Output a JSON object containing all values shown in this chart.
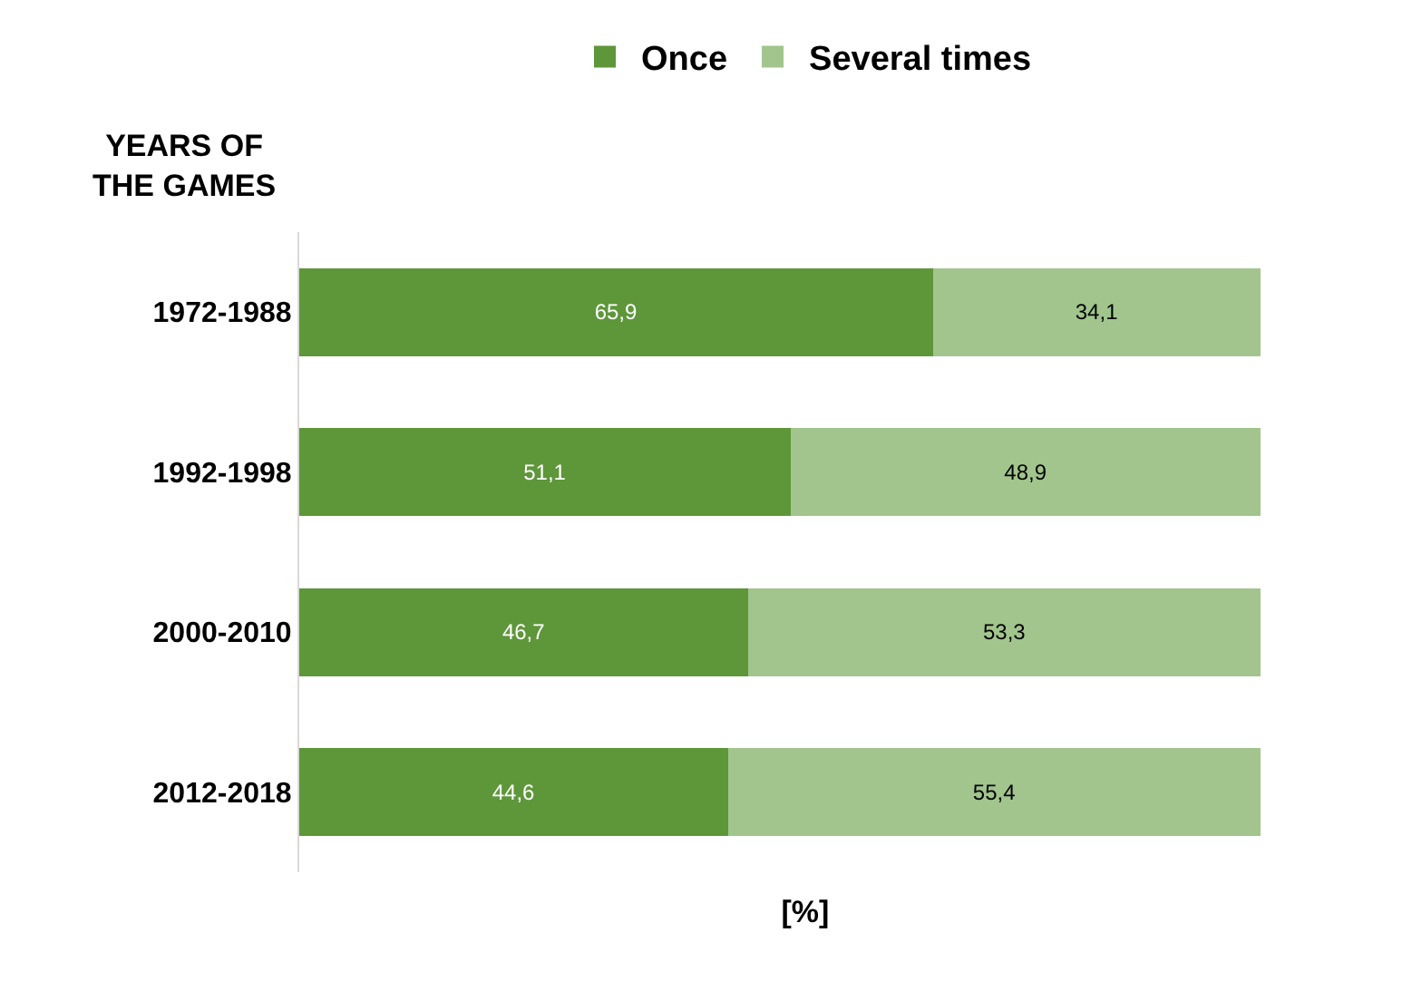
{
  "chart_data": {
    "type": "bar",
    "orientation": "horizontal",
    "stacked": true,
    "xlabel": "[%]",
    "ylabel": "YEARS OF THE GAMES",
    "categories": [
      "1972-1988",
      "1992-1998",
      "2000-2010",
      "2012-2018"
    ],
    "series": [
      {
        "name": "Once",
        "color": "#5e963a",
        "values": [
          65.9,
          51.1,
          46.7,
          44.6
        ],
        "value_labels": [
          "65,9",
          "51,1",
          "46,7",
          "44,6"
        ]
      },
      {
        "name": "Several times",
        "color": "#a1c58c",
        "values": [
          34.1,
          48.9,
          53.3,
          55.4
        ],
        "value_labels": [
          "34,1",
          "48,9",
          "53,3",
          "55,4"
        ]
      }
    ],
    "legend": "top"
  }
}
